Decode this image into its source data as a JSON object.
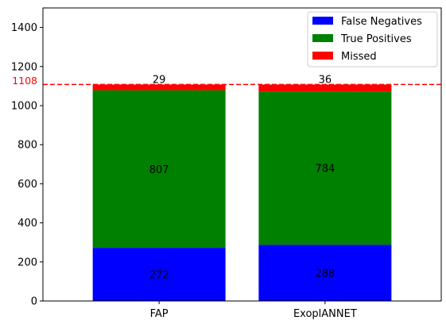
{
  "chart_data": {
    "type": "bar",
    "stacked": true,
    "categories": [
      "FAP",
      "ExoplANNET"
    ],
    "series": [
      {
        "name": "False Negatives",
        "color": "#0000ff",
        "values": [
          272,
          288
        ]
      },
      {
        "name": "True Positives",
        "color": "#008000",
        "values": [
          807,
          784
        ]
      },
      {
        "name": "Missed",
        "color": "#ff0000",
        "values": [
          29,
          36
        ]
      }
    ],
    "ylim": [
      0,
      1500
    ],
    "yticks": [
      0,
      200,
      400,
      600,
      800,
      1000,
      1200,
      1400
    ],
    "reference_line": {
      "value": 1108,
      "label": "1108",
      "color": "#ff0000",
      "style": "dashed"
    },
    "legend": {
      "placement": "top-right"
    },
    "grid": false
  }
}
